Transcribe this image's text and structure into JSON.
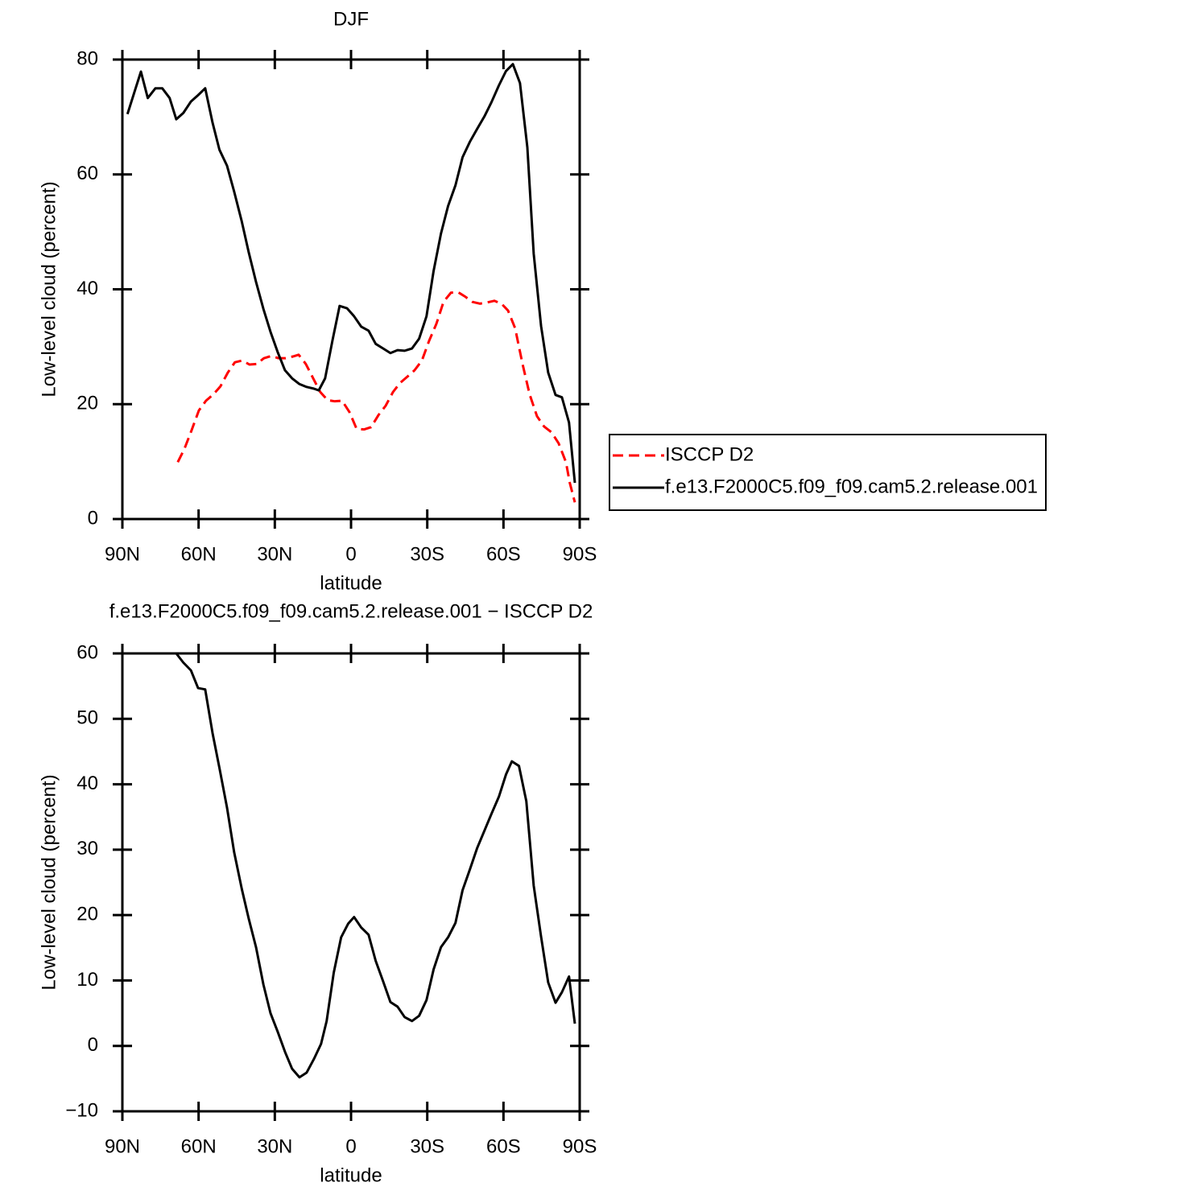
{
  "chart_data": [
    {
      "type": "line",
      "title": "DJF",
      "xlabel": "latitude",
      "ylabel": "Low-level cloud (percent)",
      "xlim": [
        90,
        -90
      ],
      "xticks": [
        {
          "value": 90,
          "label": "90N"
        },
        {
          "value": 60,
          "label": "60N"
        },
        {
          "value": 30,
          "label": "30N"
        },
        0,
        {
          "value": -30,
          "label": "30S"
        },
        {
          "value": -60,
          "label": "60S"
        },
        {
          "value": -90,
          "label": "90S"
        }
      ],
      "ylim": [
        0,
        80
      ],
      "yticks": [
        0,
        20,
        40,
        60,
        80
      ],
      "legend": "outside right",
      "series": [
        {
          "name": "ISCCP D2",
          "color": "#ff0000",
          "dash": true,
          "x": [
            68.2,
            65.6,
            62.8,
            59.9,
            57.1,
            54.2,
            51.4,
            48.5,
            45.7,
            42.8,
            40,
            37.1,
            34.3,
            31.4,
            28.5,
            25.7,
            22.9,
            20.6,
            17.8,
            14.9,
            12.1,
            9.2,
            6.4,
            3.5,
            0.6,
            -2.2,
            -5.1,
            -7.9,
            -10.8,
            -13.6,
            -16.5,
            -19.3,
            -22.2,
            -25,
            -27.9,
            -30.7,
            -33.6,
            -36.4,
            -39.3,
            -42.1,
            -45,
            -47.8,
            -50.7,
            -53.5,
            -56.4,
            -59.2,
            -61.8,
            -64.6,
            -67.5,
            -70.3,
            -73.2,
            -76,
            -78.9,
            -81.7,
            -84.6,
            -86.1,
            -88.1
          ],
          "values": [
            9.9,
            12.2,
            15.4,
            18.9,
            20.6,
            21.7,
            23.1,
            25.5,
            27.3,
            27.6,
            26.9,
            27,
            28,
            28.4,
            28,
            28,
            28.3,
            28.6,
            27,
            24.5,
            22.1,
            20.7,
            20.5,
            20.6,
            18.6,
            15.7,
            15.6,
            16,
            18.1,
            19.7,
            22.1,
            23.7,
            24.8,
            25.9,
            27.6,
            31,
            34,
            37.8,
            39.4,
            39.5,
            38.7,
            37.8,
            37.5,
            37.7,
            38,
            37.5,
            36.3,
            33.2,
            27,
            21.7,
            17.9,
            16.1,
            15.1,
            13.2,
            9.9,
            6.3,
            2.9
          ]
        },
        {
          "name": "f.e13.F2000C5.f09_f09.cam5.2.release.001",
          "color": "#000000",
          "dash": false,
          "x": [
            88,
            85,
            82.7,
            80,
            77,
            74.3,
            71.4,
            68.8,
            66,
            63,
            60.2,
            57.4,
            54.5,
            51.8,
            48.8,
            46,
            43,
            40.3,
            37.4,
            34.5,
            31.7,
            28.9,
            26,
            23.2,
            20.3,
            17.5,
            14.6,
            12.7,
            10.2,
            7.3,
            4.5,
            1.6,
            -1.2,
            -4,
            -6.9,
            -9.7,
            -12.6,
            -15.5,
            -18.3,
            -21.1,
            -24,
            -26.8,
            -29.7,
            -32.5,
            -35.4,
            -38.2,
            -41.1,
            -43.9,
            -46.8,
            -49.6,
            -52.5,
            -55.3,
            -58.2,
            -61,
            -63.7,
            -66.5,
            -69.4,
            -71.9,
            -74.8,
            -77.6,
            -80.5,
            -83,
            -85.8,
            -88.1
          ],
          "values": [
            70.5,
            74.7,
            77.9,
            73.3,
            75,
            75,
            73.3,
            69.6,
            70.7,
            72.7,
            73.8,
            75,
            69,
            64.3,
            61.5,
            57,
            51.8,
            46.5,
            41.3,
            36.6,
            32.6,
            29.1,
            25.9,
            24.5,
            23.5,
            23,
            22.7,
            22.4,
            24.5,
            31.1,
            37.1,
            36.7,
            35.3,
            33.5,
            32.8,
            30.5,
            29.7,
            28.9,
            29.4,
            29.3,
            29.7,
            31.4,
            35.3,
            43.2,
            49.7,
            54.5,
            58.1,
            63,
            65.7,
            67.9,
            70.1,
            72.6,
            75.5,
            78,
            79.2,
            75.9,
            64.7,
            46.2,
            33.6,
            25.5,
            21.6,
            21.2,
            16.8,
            6.3
          ]
        }
      ]
    },
    {
      "type": "line",
      "title": "f.e13.F2000C5.f09_f09.cam5.2.release.001 − ISCCP D2",
      "xlabel": "latitude",
      "ylabel": "Low-level cloud (percent)",
      "xlim": [
        90,
        -90
      ],
      "xticks": [
        {
          "value": 90,
          "label": "90N"
        },
        {
          "value": 60,
          "label": "60N"
        },
        {
          "value": 30,
          "label": "30N"
        },
        0,
        {
          "value": -30,
          "label": "30S"
        },
        {
          "value": -60,
          "label": "60S"
        },
        {
          "value": -90,
          "label": "90S"
        }
      ],
      "ylim": [
        -10,
        60
      ],
      "yticks": [
        {
          "value": -10,
          "label": "−10"
        },
        0,
        10,
        20,
        30,
        40,
        50,
        60
      ],
      "series": [
        {
          "color": "#000000",
          "dash": false,
          "x": [
            68.8,
            66,
            63,
            60.2,
            57.4,
            54.5,
            51.8,
            48.8,
            46,
            43,
            40.3,
            37.4,
            34.5,
            31.7,
            28.9,
            26,
            23.2,
            20.3,
            17.5,
            14.6,
            11.8,
            9.6,
            6.8,
            3.9,
            1.1,
            -1.2,
            -4,
            -6.9,
            -9.7,
            -12.6,
            -15.5,
            -18.3,
            -21.1,
            -24,
            -26.8,
            -29.7,
            -32.5,
            -35.4,
            -38.2,
            -41.1,
            -43.9,
            -46.8,
            -49.6,
            -52.5,
            -55.3,
            -58.2,
            -61,
            -63.3,
            -66.1,
            -69,
            -71.9,
            -74.8,
            -77.6,
            -80.5,
            -83,
            -85.8,
            -88.1
          ],
          "values": [
            60,
            58.6,
            57.4,
            54.7,
            54.5,
            47.8,
            42.5,
            36.4,
            29.6,
            24,
            19.5,
            15.1,
            9.4,
            5,
            2.2,
            -0.9,
            -3.5,
            -4.8,
            -4.1,
            -2,
            0.3,
            3.8,
            11.2,
            16.6,
            18.7,
            19.7,
            18.1,
            17,
            13,
            9.9,
            6.7,
            6,
            4.4,
            3.8,
            4.6,
            7,
            11.7,
            15.1,
            16.6,
            18.8,
            23.8,
            27,
            30.2,
            32.9,
            35.5,
            38.1,
            41.5,
            43.5,
            42.8,
            37.4,
            24.5,
            16.7,
            9.7,
            6.6,
            8.2,
            10.6,
            3.4
          ]
        }
      ]
    }
  ]
}
